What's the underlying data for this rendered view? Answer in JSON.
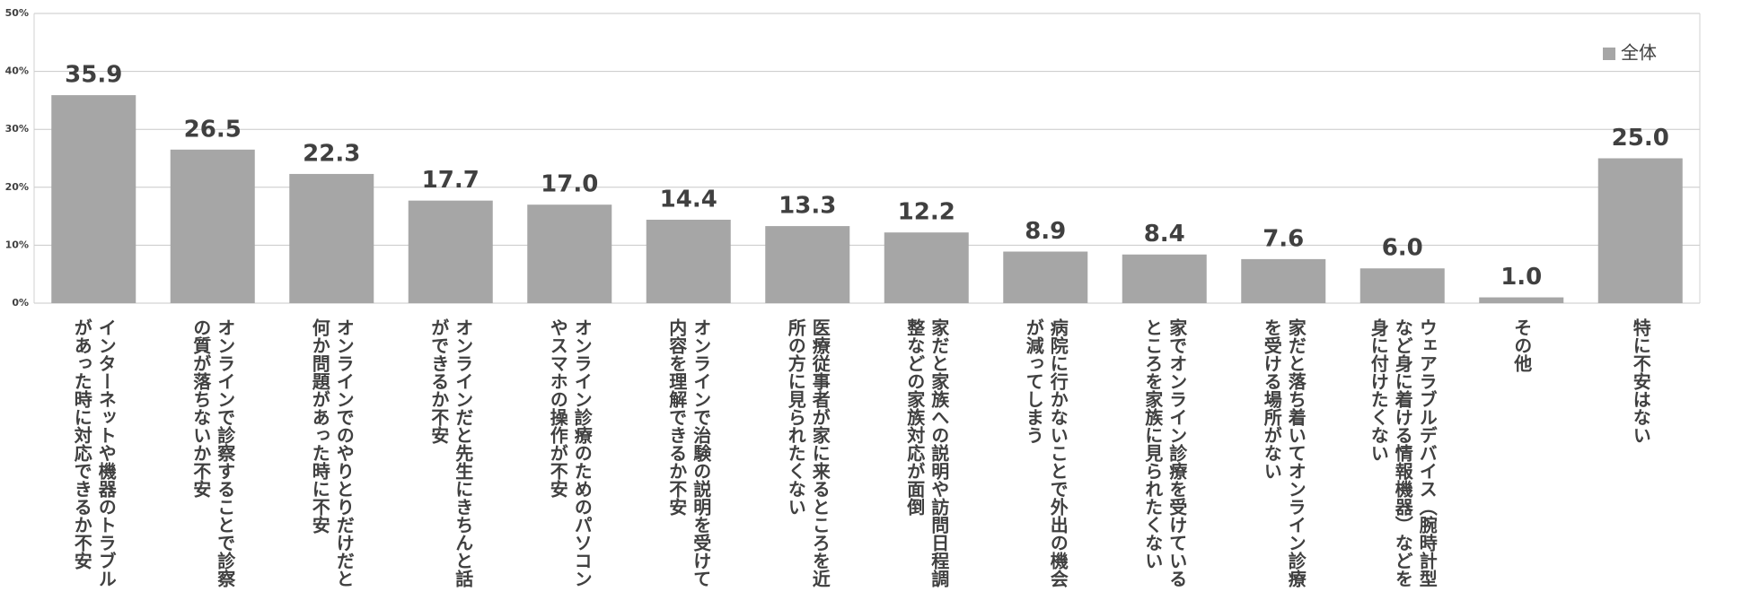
{
  "chart_data": {
    "type": "bar",
    "categories": [
      "インターネットや機器のトラブルがあった時に対応できるか不安",
      "オンラインで診察することで診察の質が落ちないか不安",
      "オンラインでのやりとりだけだと何か問題があった時に不安",
      "オンラインだと先生にきちんと話ができるか不安",
      "オンライン診療のためのパソコンやスマホの操作が不安",
      "オンラインで治験の説明を受けて内容を理解できるか不安",
      "医療従事者が家に来るところを近所の方に見られたくない",
      "家だと家族への説明や訪問日程調整などの家族対応が面倒",
      "病院に行かないことで外出の機会が減ってしまう",
      "家でオンライン診療を受けているところを家族に見られたくない",
      "家だと落ち着いてオンライン診療を受ける場所がない",
      "ウェアラブルデバイス（腕時計型など身に着ける情報機器）などを身に付けたくない",
      "その他",
      "特に不安はない"
    ],
    "series": [
      {
        "name": "全体",
        "color": "#a6a6a6",
        "values": [
          35.9,
          26.5,
          22.3,
          17.7,
          17.0,
          14.4,
          13.3,
          12.2,
          8.9,
          8.4,
          7.6,
          6.0,
          1.0,
          25.0
        ],
        "value_labels": [
          "35.9",
          "26.5",
          "22.3",
          "17.7",
          "17.0",
          "14.4",
          "13.3",
          "12.2",
          "8.9",
          "8.4",
          "7.6",
          "6.0",
          "1.0",
          "25.0"
        ]
      }
    ],
    "ylim": [
      0,
      50
    ],
    "yticks": [
      {
        "value": 0,
        "label": "0%"
      },
      {
        "value": 10,
        "label": "10%"
      },
      {
        "value": 20,
        "label": "20%"
      },
      {
        "value": 30,
        "label": "30%"
      },
      {
        "value": 40,
        "label": "40%"
      },
      {
        "value": 50,
        "label": "50%"
      }
    ],
    "grid": true,
    "legend": "top-right"
  }
}
